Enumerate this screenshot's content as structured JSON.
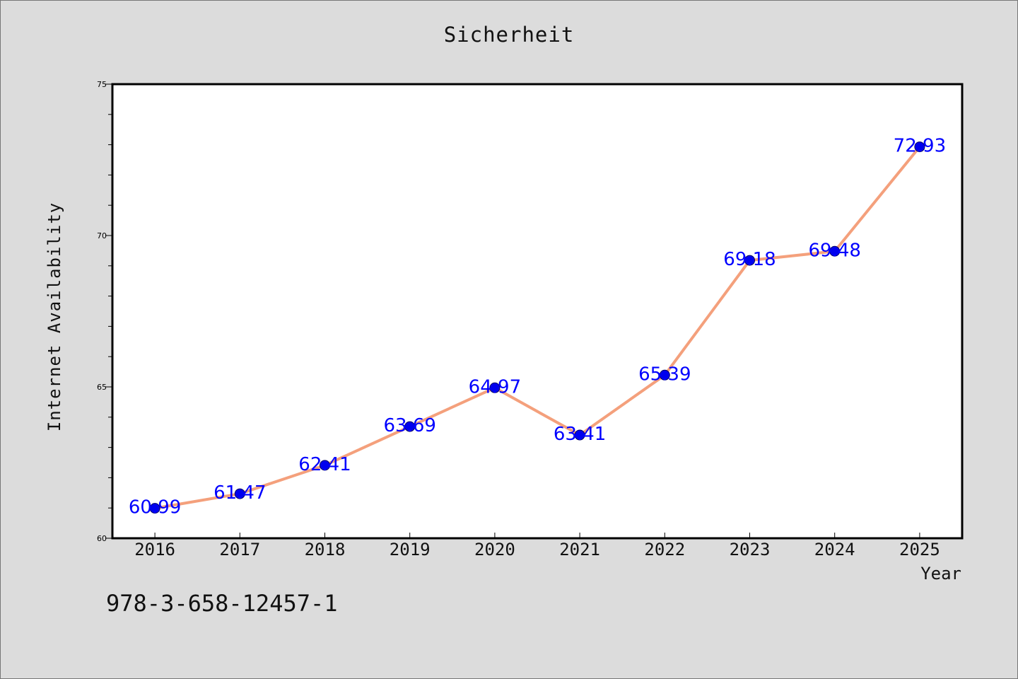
{
  "chart_data": {
    "type": "line",
    "title": "Sicherheit",
    "xlabel": "Year",
    "ylabel": "Internet Availability",
    "categories": [
      "2016",
      "2017",
      "2018",
      "2019",
      "2020",
      "2021",
      "2022",
      "2023",
      "2024",
      "2025"
    ],
    "series": [
      {
        "values": [
          60.99,
          61.47,
          62.41,
          63.69,
          64.97,
          63.41,
          65.39,
          69.18,
          69.48,
          72.93
        ],
        "data_labels": [
          "60.99",
          "61.47",
          "62.41",
          "63.69",
          "64.97",
          "63.41",
          "65.39",
          "69.18",
          "69.48",
          "72.93"
        ],
        "line_color": "#f4a07c",
        "marker_color": "#0000ee"
      }
    ],
    "ylim": [
      60,
      75
    ],
    "y_major_ticks": [
      60,
      65,
      70,
      75
    ],
    "y_tick_labels": [
      "60",
      "65",
      "70",
      "75"
    ],
    "y_minor_step": 1,
    "grid": false,
    "label_color": "#0000ff"
  },
  "annotation": {
    "isbn": "978-3-658-12457-1"
  }
}
